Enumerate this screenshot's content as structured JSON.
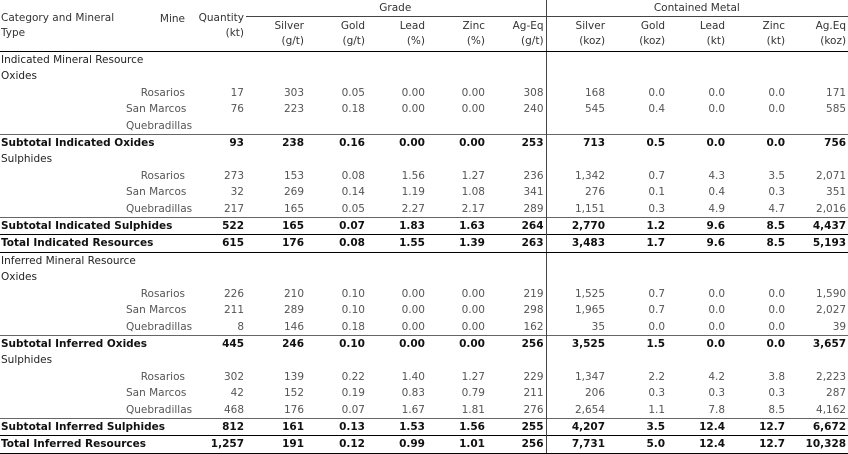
{
  "header": {
    "category": "Category and Mineral Type",
    "mine": "Mine",
    "quantity": [
      "Quantity",
      "(kt)"
    ],
    "grade_group": "Grade",
    "contained_group": "Contained Metal",
    "grade_columns": [
      [
        "Silver",
        "(g/t)"
      ],
      [
        "Gold",
        "(g/t)"
      ],
      [
        "Lead",
        "(%)"
      ],
      [
        "Zinc",
        "(%)"
      ],
      [
        "Ag-Eq",
        "(g/t)"
      ]
    ],
    "contained_columns": [
      [
        "Silver",
        "(koz)"
      ],
      [
        "Gold",
        "(koz)"
      ],
      [
        "Lead",
        "(kt)"
      ],
      [
        "Zinc",
        "(kt)"
      ],
      [
        "Ag.Eq",
        "(koz)"
      ]
    ]
  },
  "rows": [
    {
      "kind": "section",
      "label": "Indicated Mineral Resource"
    },
    {
      "kind": "section",
      "label": "Oxides"
    },
    {
      "kind": "data",
      "mine": "Rosarios",
      "cells": [
        "17",
        "303",
        "0.05",
        "0.00",
        "0.00",
        "308",
        "168",
        "0.0",
        "0.0",
        "0.0",
        "171"
      ]
    },
    {
      "kind": "data",
      "mine": "San Marcos",
      "cells": [
        "76",
        "223",
        "0.18",
        "0.00",
        "0.00",
        "240",
        "545",
        "0.4",
        "0.0",
        "0.0",
        "585"
      ]
    },
    {
      "kind": "data",
      "mine": "Quebradillas"
    },
    {
      "kind": "subtotal",
      "label": "Subtotal Indicated Oxides",
      "cells": [
        "93",
        "238",
        "0.16",
        "0.00",
        "0.00",
        "253",
        "713",
        "0.5",
        "0.0",
        "0.0",
        "756"
      ]
    },
    {
      "kind": "section",
      "label": "Sulphides"
    },
    {
      "kind": "data",
      "mine": "Rosarios",
      "cells": [
        "273",
        "153",
        "0.08",
        "1.56",
        "1.27",
        "236",
        "1,342",
        "0.7",
        "4.3",
        "3.5",
        "2,071"
      ]
    },
    {
      "kind": "data",
      "mine": "San Marcos",
      "cells": [
        "32",
        "269",
        "0.14",
        "1.19",
        "1.08",
        "341",
        "276",
        "0.1",
        "0.4",
        "0.3",
        "351"
      ]
    },
    {
      "kind": "data",
      "mine": "Quebradillas",
      "cells": [
        "217",
        "165",
        "0.05",
        "2.27",
        "2.17",
        "289",
        "1,151",
        "0.3",
        "4.9",
        "4.7",
        "2,016"
      ]
    },
    {
      "kind": "subtotal",
      "label": "Subtotal Indicated Sulphides",
      "cells": [
        "522",
        "165",
        "0.07",
        "1.83",
        "1.63",
        "264",
        "2,770",
        "1.2",
        "9.6",
        "8.5",
        "4,437"
      ]
    },
    {
      "kind": "total",
      "label": "Total Indicated Resources",
      "cells": [
        "615",
        "176",
        "0.08",
        "1.55",
        "1.39",
        "263",
        "3,483",
        "1.7",
        "9.6",
        "8.5",
        "5,193"
      ]
    },
    {
      "kind": "section",
      "label": "Inferred Mineral Resource"
    },
    {
      "kind": "section",
      "label": "Oxides"
    },
    {
      "kind": "data",
      "mine": "Rosarios",
      "cells": [
        "226",
        "210",
        "0.10",
        "0.00",
        "0.00",
        "219",
        "1,525",
        "0.7",
        "0.0",
        "0.0",
        "1,590"
      ]
    },
    {
      "kind": "data",
      "mine": "San Marcos",
      "cells": [
        "211",
        "289",
        "0.10",
        "0.00",
        "0.00",
        "298",
        "1,965",
        "0.7",
        "0.0",
        "0.0",
        "2,027"
      ]
    },
    {
      "kind": "data",
      "mine": "Quebradillas",
      "cells": [
        "8",
        "146",
        "0.18",
        "0.00",
        "0.00",
        "162",
        "35",
        "0.0",
        "0.0",
        "0.0",
        "39"
      ]
    },
    {
      "kind": "subtotal",
      "label": "Subtotal Inferred Oxides",
      "cells": [
        "445",
        "246",
        "0.10",
        "0.00",
        "0.00",
        "256",
        "3,525",
        "1.5",
        "0.0",
        "0.0",
        "3,657"
      ]
    },
    {
      "kind": "section",
      "label": "Sulphides"
    },
    {
      "kind": "data",
      "mine": "Rosarios",
      "cells": [
        "302",
        "139",
        "0.22",
        "1.40",
        "1.27",
        "229",
        "1,347",
        "2.2",
        "4.2",
        "3.8",
        "2,223"
      ]
    },
    {
      "kind": "data",
      "mine": "San Marcos",
      "cells": [
        "42",
        "152",
        "0.19",
        "0.83",
        "0.79",
        "211",
        "206",
        "0.3",
        "0.3",
        "0.3",
        "287"
      ]
    },
    {
      "kind": "data",
      "mine": "Quebradillas",
      "cells": [
        "468",
        "176",
        "0.07",
        "1.67",
        "1.81",
        "276",
        "2,654",
        "1.1",
        "7.8",
        "8.5",
        "4,162"
      ]
    },
    {
      "kind": "subtotal",
      "label": "Subtotal Inferred Sulphides",
      "cells": [
        "812",
        "161",
        "0.13",
        "1.53",
        "1.56",
        "255",
        "4,207",
        "3.5",
        "12.4",
        "12.7",
        "6,672"
      ]
    },
    {
      "kind": "total",
      "label": "Total Inferred Resources",
      "cells": [
        "1,257",
        "191",
        "0.12",
        "0.99",
        "1.01",
        "256",
        "7,731",
        "5.0",
        "12.4",
        "12.7",
        "10,328"
      ]
    }
  ]
}
